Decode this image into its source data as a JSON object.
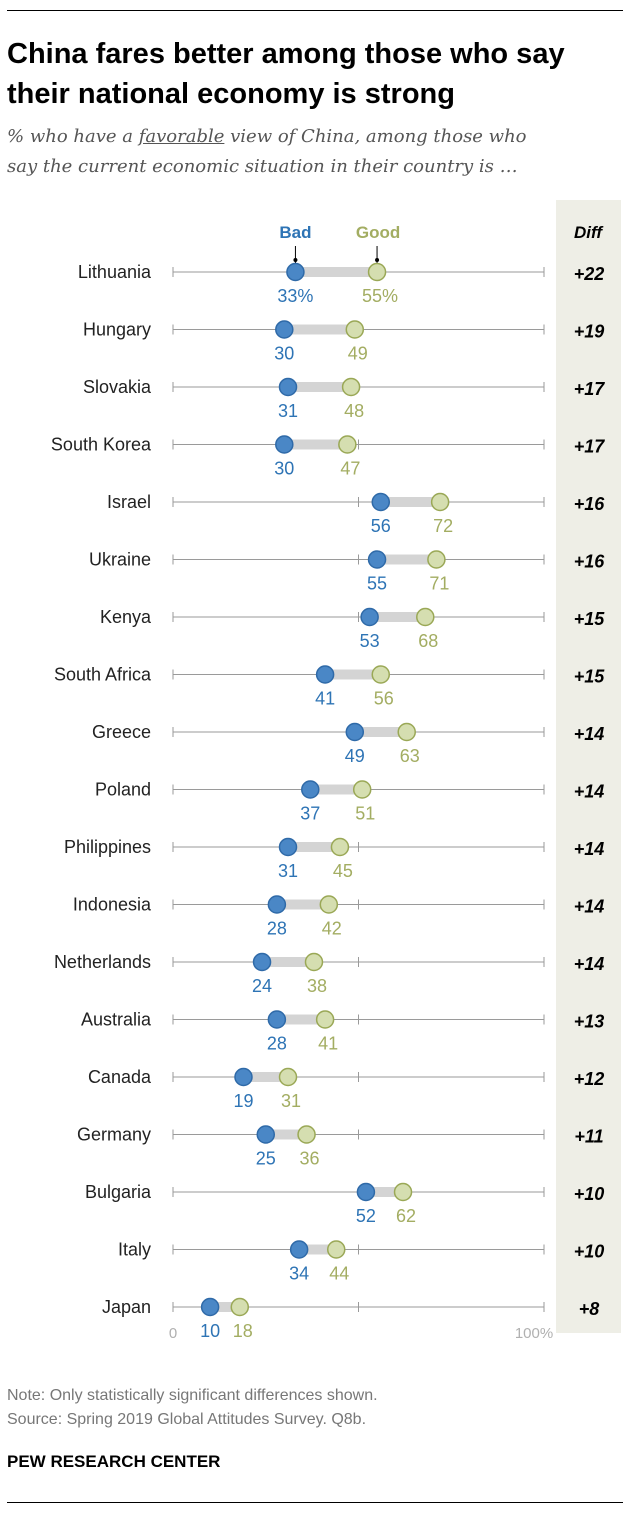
{
  "header": {
    "title_line1": "China fares better among those who say",
    "title_line2": "their national economy is strong",
    "subtitle_pre": "% who have a ",
    "subtitle_underlined": "favorable",
    "subtitle_post": " view of China, among those who",
    "subtitle_line2": "say the current economic situation in their country is …"
  },
  "colors": {
    "bad": "#4a87c6",
    "bad_text": "#2e74b5",
    "good": "#d5deb0",
    "good_stroke": "#9aa856",
    "good_text": "#a3ad62",
    "connector": "#d4d4d4",
    "diff_panel": "#eeeee6"
  },
  "chart_data": {
    "type": "dot",
    "xlim": [
      0,
      100
    ],
    "tick_labels": [
      "0",
      "100%"
    ],
    "diff_header": "Diff",
    "series": [
      {
        "name": "Bad",
        "key": "bad"
      },
      {
        "name": "Good",
        "key": "good"
      }
    ],
    "rows": [
      {
        "country": "Lithuania",
        "bad": 33,
        "good": 55,
        "bad_label": "33%",
        "good_label": "55%",
        "diff": "+22"
      },
      {
        "country": "Hungary",
        "bad": 30,
        "good": 49,
        "bad_label": "30",
        "good_label": "49",
        "diff": "+19"
      },
      {
        "country": "Slovakia",
        "bad": 31,
        "good": 48,
        "bad_label": "31",
        "good_label": "48",
        "diff": "+17"
      },
      {
        "country": "South Korea",
        "bad": 30,
        "good": 47,
        "bad_label": "30",
        "good_label": "47",
        "diff": "+17"
      },
      {
        "country": "Israel",
        "bad": 56,
        "good": 72,
        "bad_label": "56",
        "good_label": "72",
        "diff": "+16"
      },
      {
        "country": "Ukraine",
        "bad": 55,
        "good": 71,
        "bad_label": "55",
        "good_label": "71",
        "diff": "+16"
      },
      {
        "country": "Kenya",
        "bad": 53,
        "good": 68,
        "bad_label": "53",
        "good_label": "68",
        "diff": "+15"
      },
      {
        "country": "South Africa",
        "bad": 41,
        "good": 56,
        "bad_label": "41",
        "good_label": "56",
        "diff": "+15"
      },
      {
        "country": "Greece",
        "bad": 49,
        "good": 63,
        "bad_label": "49",
        "good_label": "63",
        "diff": "+14"
      },
      {
        "country": "Poland",
        "bad": 37,
        "good": 51,
        "bad_label": "37",
        "good_label": "51",
        "diff": "+14"
      },
      {
        "country": "Philippines",
        "bad": 31,
        "good": 45,
        "bad_label": "31",
        "good_label": "45",
        "diff": "+14"
      },
      {
        "country": "Indonesia",
        "bad": 28,
        "good": 42,
        "bad_label": "28",
        "good_label": "42",
        "diff": "+14"
      },
      {
        "country": "Netherlands",
        "bad": 24,
        "good": 38,
        "bad_label": "24",
        "good_label": "38",
        "diff": "+14"
      },
      {
        "country": "Australia",
        "bad": 28,
        "good": 41,
        "bad_label": "28",
        "good_label": "41",
        "diff": "+13"
      },
      {
        "country": "Canada",
        "bad": 19,
        "good": 31,
        "bad_label": "19",
        "good_label": "31",
        "diff": "+12"
      },
      {
        "country": "Germany",
        "bad": 25,
        "good": 36,
        "bad_label": "25",
        "good_label": "36",
        "diff": "+11"
      },
      {
        "country": "Bulgaria",
        "bad": 52,
        "good": 62,
        "bad_label": "52",
        "good_label": "62",
        "diff": "+10"
      },
      {
        "country": "Italy",
        "bad": 34,
        "good": 44,
        "bad_label": "34",
        "good_label": "44",
        "diff": "+10"
      },
      {
        "country": "Japan",
        "bad": 10,
        "good": 18,
        "bad_label": "10",
        "good_label": "18",
        "diff": "+8"
      }
    ]
  },
  "footer": {
    "note": "Note: Only statistically significant differences shown.",
    "source": "Source: Spring 2019 Global Attitudes Survey. Q8b.",
    "brand": "PEW RESEARCH CENTER"
  }
}
